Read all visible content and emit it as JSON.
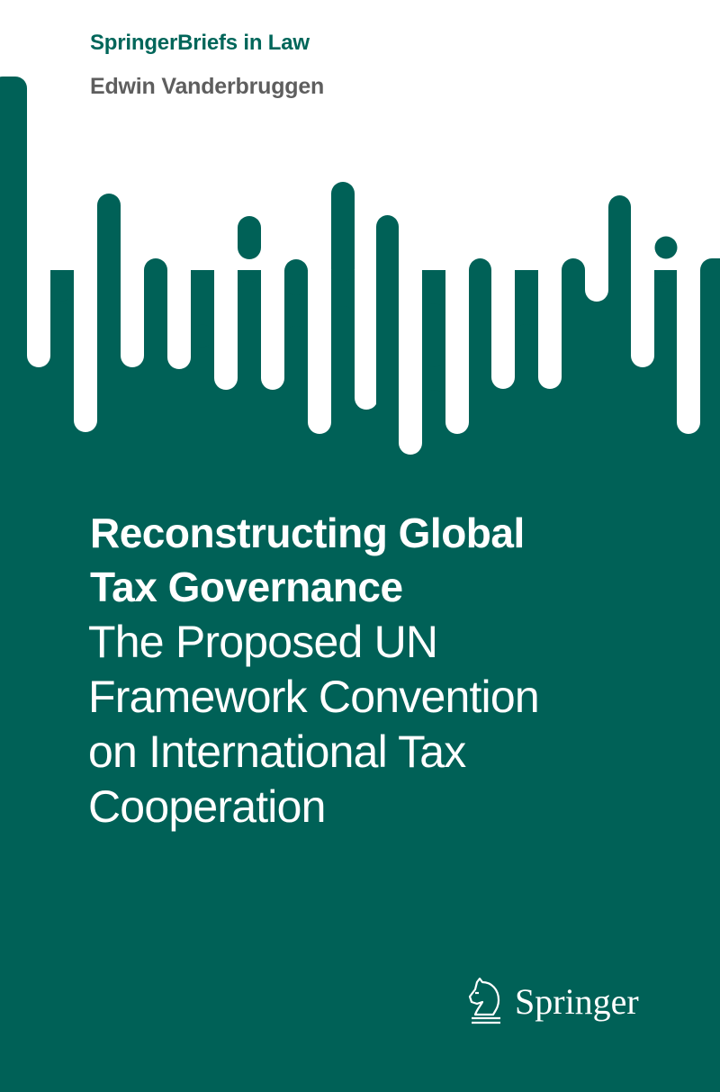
{
  "cover": {
    "series": "SpringerBriefs in Law",
    "author": "Edwin Vanderbruggen",
    "title_lines": [
      "Reconstructing Global",
      "Tax Governance"
    ],
    "subtitle_lines": [
      "The Proposed UN",
      "Framework Convention",
      "on International Tax",
      "Cooperation"
    ],
    "publisher": "Springer",
    "publisher_logo_icon": "knight-horse-icon"
  },
  "colors": {
    "brand_green": "#006157",
    "series_text": "#00665a",
    "author_text": "#5e5e5e",
    "background": "#ffffff"
  }
}
